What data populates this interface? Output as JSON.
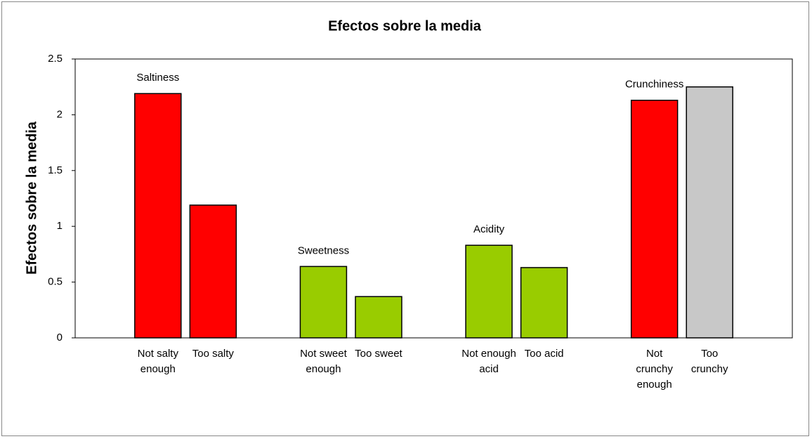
{
  "chart_data": {
    "type": "bar",
    "title": "Efectos sobre la media",
    "y_label": "Efectos sobre la media",
    "categories": [
      null,
      "Not salty enough",
      "Too salty",
      null,
      "Not sweet enough",
      "Too sweet",
      null,
      "Not enough acid",
      "Too acid",
      null,
      "Not crunchy enough",
      "Too crunchy",
      null
    ],
    "values": [
      null,
      2.19,
      1.19,
      null,
      0.64,
      0.37,
      null,
      0.83,
      0.63,
      null,
      2.13,
      2.25,
      null
    ],
    "colors": [
      null,
      "#ff0000",
      "#ff0000",
      null,
      "#99cc00",
      "#99cc00",
      null,
      "#99cc00",
      "#99cc00",
      null,
      "#ff0000",
      "#c8c8c8",
      null
    ],
    "annotations": [
      {
        "text": "Saltiness",
        "category": "Not salty enough"
      },
      {
        "text": "Sweetness",
        "category": "Not sweet enough"
      },
      {
        "text": "Acidity",
        "category": "Not enough acid"
      },
      {
        "text": "Crunchiness",
        "category": "Not crunchy enough"
      }
    ],
    "ylim": [
      0,
      2.5
    ],
    "yticks": [
      0,
      0.5,
      1,
      1.5,
      2,
      2.5
    ],
    "grid": false
  }
}
